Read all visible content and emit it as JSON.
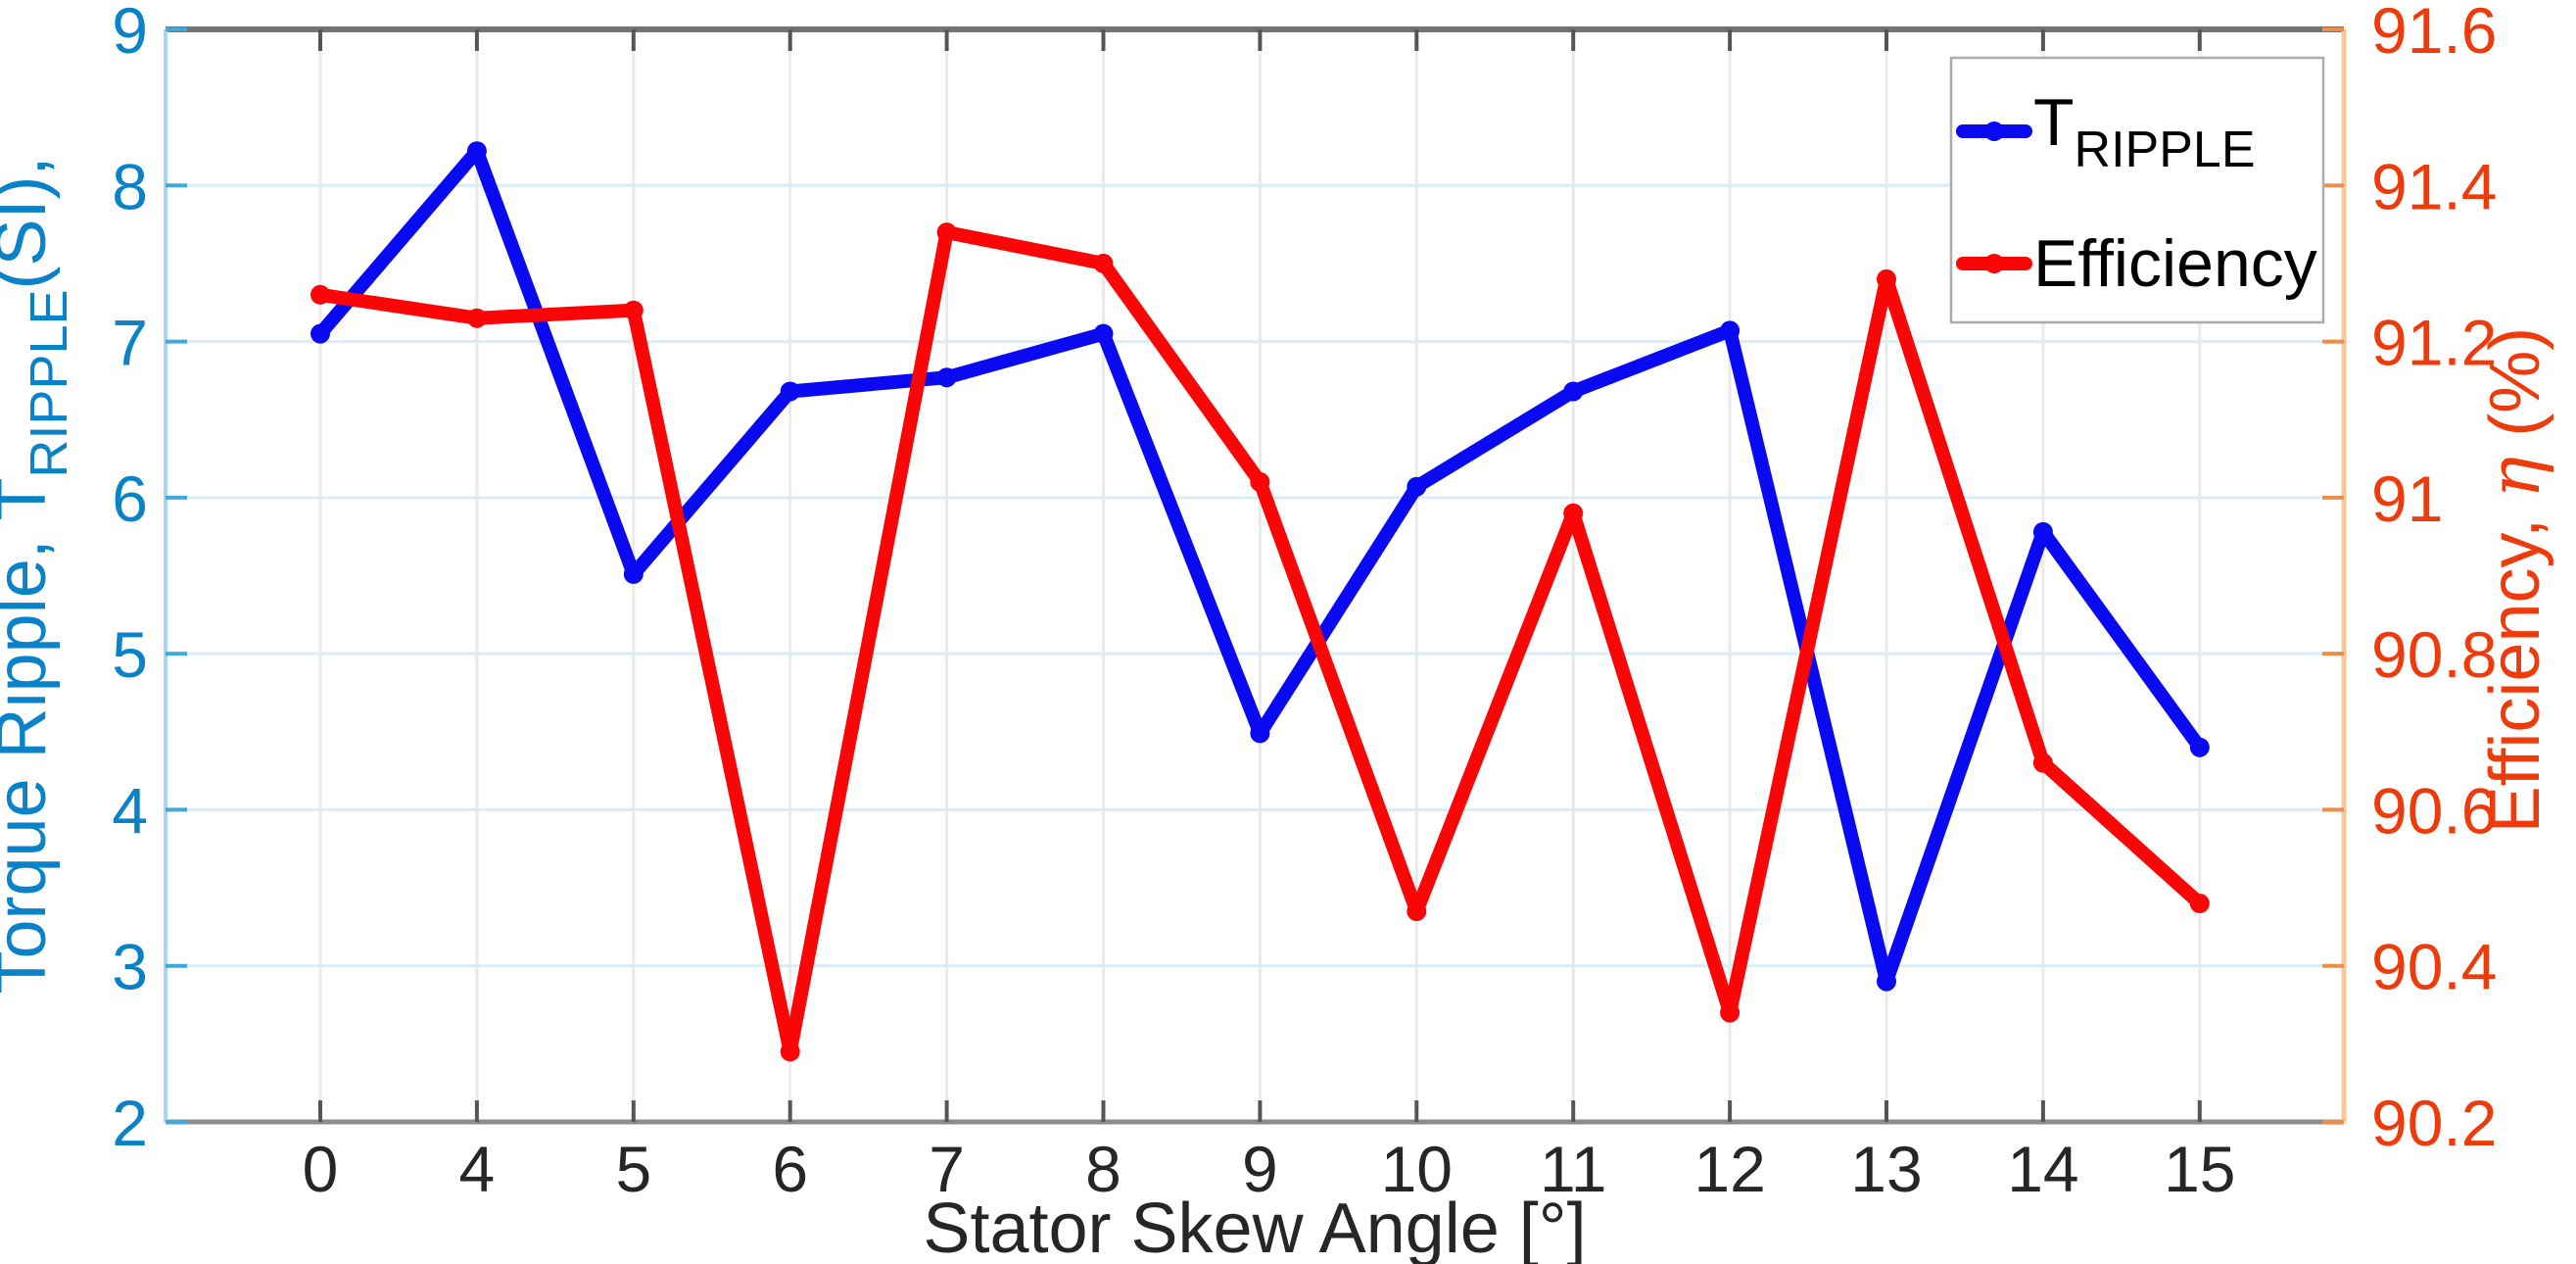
{
  "figure": {
    "background": "#ffffff"
  },
  "chart_data": {
    "type": "line",
    "title": "",
    "xlabel": "Stator Skew Angle [°]",
    "ylabel_left": {
      "pre": "Torque Ripple, T",
      "sub": "RIPPLE",
      "post": "(SI),"
    },
    "ylabel_right": {
      "pre": "Efficiency, ",
      "eta": "η",
      "post": " (%)"
    },
    "categories": [
      "0",
      "4",
      "5",
      "6",
      "7",
      "8",
      "9",
      "10",
      "11",
      "12",
      "13",
      "14",
      "15"
    ],
    "series": [
      {
        "name": "T_RIPPLE",
        "legend_pre": "T",
        "legend_sub": "RIPPLE",
        "axis": "left",
        "color": "#0a0af2",
        "values": [
          7.05,
          8.22,
          5.51,
          6.68,
          6.77,
          7.05,
          4.49,
          6.07,
          6.68,
          7.07,
          2.9,
          5.78,
          4.4
        ]
      },
      {
        "name": "Efficiency",
        "legend_label": "Efficiency",
        "axis": "right",
        "color": "#fa0606",
        "values": [
          91.26,
          91.23,
          91.24,
          90.29,
          91.34,
          91.3,
          91.02,
          90.47,
          90.98,
          90.34,
          91.28,
          90.66,
          90.48
        ]
      }
    ],
    "ylim_left": [
      2,
      9
    ],
    "yticks_left": [
      "2",
      "3",
      "4",
      "5",
      "6",
      "7",
      "8",
      "9"
    ],
    "ylim_right": [
      90.2,
      91.6
    ],
    "yticks_right": [
      "90.2",
      "90.4",
      "90.6",
      "90.8",
      "91",
      "91.2",
      "91.4",
      "91.6"
    ],
    "grid": true,
    "legend_position": "top-right",
    "line_width": 14,
    "marker": "circle",
    "marker_radius": 10
  },
  "colors": {
    "left_axis_text": "#0a82c8",
    "left_tick": "#3fa8dc",
    "left_spine": "#a9d5ee",
    "h_gridline": "#d9edf8",
    "right_axis_text": "#ee3b0b",
    "right_tick": "#f08c46",
    "right_spine": "#f8c795",
    "v_gridline": "#eaeaea",
    "x_axis_text": "#262626",
    "top_spine": "#737373",
    "bottom_spine": "#8c8c8c",
    "xy_tick": "#555555",
    "legend_border": "#adadad",
    "legend_text": "#000000",
    "background": "#ffffff"
  }
}
